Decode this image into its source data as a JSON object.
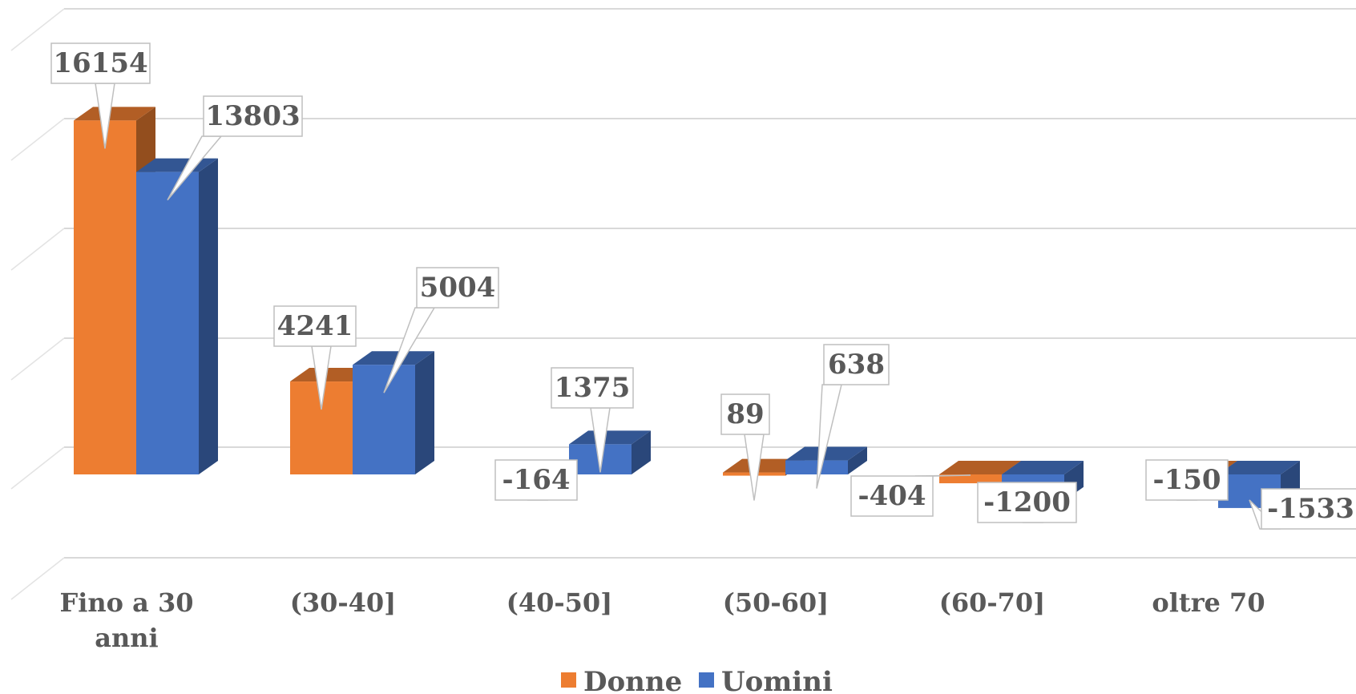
{
  "chart_data": {
    "type": "bar",
    "categories": [
      "Fino a 30 anni",
      "(30-40]",
      "(40-50]",
      "(50-60]",
      "(60-70]",
      "oltre 70"
    ],
    "category_lines": [
      [
        "Fino a 30",
        "anni"
      ],
      [
        "(30-40]"
      ],
      [
        "(40-50]"
      ],
      [
        "(50-60]"
      ],
      [
        "(60-70]"
      ],
      [
        "oltre 70"
      ]
    ],
    "series": [
      {
        "name": "Donne",
        "values": [
          16154,
          4241,
          -164,
          89,
          -404,
          -150
        ],
        "color": "#ED7D31"
      },
      {
        "name": "Uomini",
        "values": [
          13803,
          5004,
          1375,
          638,
          -1200,
          -1533
        ],
        "color": "#4472C4"
      }
    ],
    "ylim": [
      -5000,
      20000
    ],
    "grid": true,
    "legend_position": "bottom",
    "style": "3d-clustered-column"
  }
}
